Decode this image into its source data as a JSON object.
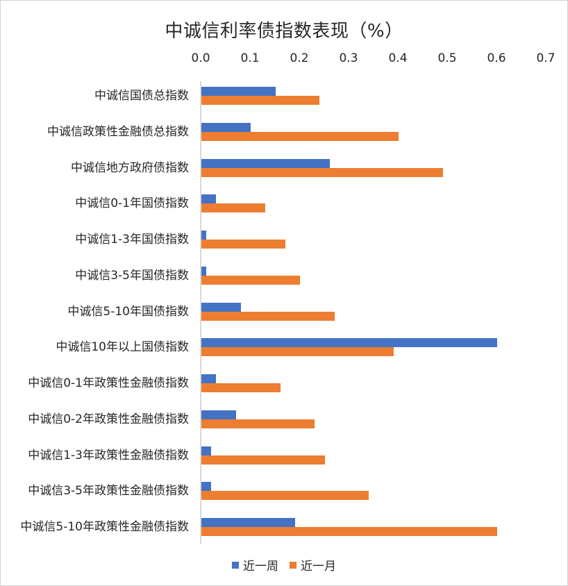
{
  "chart_data": {
    "type": "bar",
    "orientation": "horizontal",
    "title": "中诚信利率债指数表现（%）",
    "xlabel": "",
    "ylabel": "",
    "xlim": [
      0,
      0.7
    ],
    "x_ticks": [
      "0.0",
      "0.1",
      "0.2",
      "0.3",
      "0.4",
      "0.5",
      "0.6",
      "0.7"
    ],
    "x_axis_position": "top",
    "grid": false,
    "legend_position": "bottom",
    "categories": [
      "中诚信国债总指数",
      "中诚信政策性金融债总指数",
      "中诚信地方政府债指数",
      "中诚信0-1年国债指数",
      "中诚信1-3年国债指数",
      "中诚信3-5年国债指数",
      "中诚信5-10年国债指数",
      "中诚信10年以上国债指数",
      "中诚信0-1年政策性金融债指数",
      "中诚信0-2年政策性金融债指数",
      "中诚信1-3年政策性金融债指数",
      "中诚信3-5年政策性金融债指数",
      "中诚信5-10年政策性金融债指数"
    ],
    "series": [
      {
        "name": "近一周",
        "color": "#4472c4",
        "values": [
          0.15,
          0.1,
          0.26,
          0.03,
          0.01,
          0.01,
          0.08,
          0.6,
          0.03,
          0.07,
          0.02,
          0.02,
          0.19
        ]
      },
      {
        "name": "近一月",
        "color": "#ed7d31",
        "values": [
          0.24,
          0.4,
          0.49,
          0.13,
          0.17,
          0.2,
          0.27,
          0.39,
          0.16,
          0.23,
          0.25,
          0.34,
          0.6
        ]
      }
    ]
  },
  "legend": {
    "week": "近一周",
    "month": "近一月"
  }
}
